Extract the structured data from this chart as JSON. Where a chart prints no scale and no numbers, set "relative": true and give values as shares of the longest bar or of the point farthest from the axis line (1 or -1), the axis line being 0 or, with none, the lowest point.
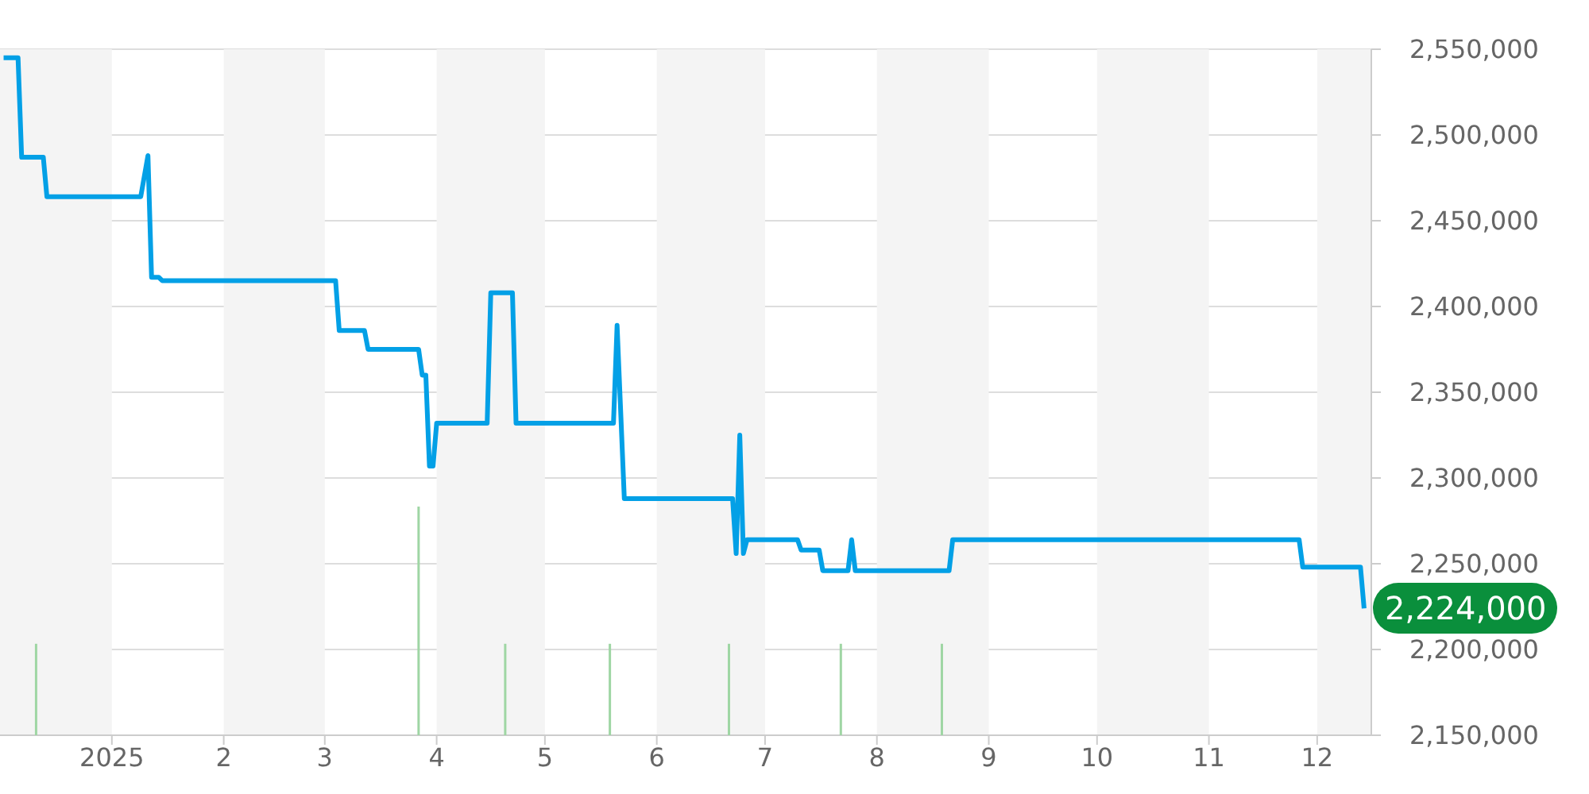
{
  "chart_data": [
    {
      "type": "line",
      "xlim": [
        "2024-12-01",
        "2025-12-16"
      ],
      "xticks": [
        {
          "value": "2025-01-01",
          "label": "2025"
        },
        {
          "value": "2025-02-01",
          "label": "2"
        },
        {
          "value": "2025-03-01",
          "label": "3"
        },
        {
          "value": "2025-04-01",
          "label": "4"
        },
        {
          "value": "2025-05-01",
          "label": "5"
        },
        {
          "value": "2025-06-01",
          "label": "6"
        },
        {
          "value": "2025-07-01",
          "label": "7"
        },
        {
          "value": "2025-08-01",
          "label": "8"
        },
        {
          "value": "2025-09-01",
          "label": "9"
        },
        {
          "value": "2025-10-01",
          "label": "10"
        },
        {
          "value": "2025-11-01",
          "label": "11"
        },
        {
          "value": "2025-12-01",
          "label": "12"
        }
      ],
      "ylim": [
        2150000,
        2550000
      ],
      "yticks": [
        {
          "value": 2150000,
          "label": "2,150,000"
        },
        {
          "value": 2200000,
          "label": "2,200,000"
        },
        {
          "value": 2250000,
          "label": "2,250,000"
        },
        {
          "value": 2300000,
          "label": "2,300,000"
        },
        {
          "value": 2350000,
          "label": "2,350,000"
        },
        {
          "value": 2400000,
          "label": "2,400,000"
        },
        {
          "value": 2450000,
          "label": "2,450,000"
        },
        {
          "value": 2500000,
          "label": "2,500,000"
        },
        {
          "value": 2550000,
          "label": "2,550,000"
        }
      ],
      "grid": "y",
      "marker": "none",
      "line_style": "solid",
      "series": [
        {
          "color": "#03a0e6",
          "x": [
            "2024-12-02",
            "2024-12-06",
            "2024-12-07",
            "2024-12-13",
            "2024-12-14",
            "2025-01-09",
            "2025-01-11",
            "2025-01-12",
            "2025-01-14",
            "2025-01-15",
            "2025-03-04",
            "2025-03-05",
            "2025-03-12",
            "2025-03-13",
            "2025-03-27",
            "2025-03-28",
            "2025-03-29",
            "2025-03-30",
            "2025-03-31",
            "2025-04-01",
            "2025-04-15",
            "2025-04-16",
            "2025-04-22",
            "2025-04-23",
            "2025-05-20",
            "2025-05-21",
            "2025-05-23",
            "2025-06-22",
            "2025-06-23",
            "2025-06-24",
            "2025-06-25",
            "2025-06-26",
            "2025-07-10",
            "2025-07-11",
            "2025-07-16",
            "2025-07-17",
            "2025-07-24",
            "2025-07-25",
            "2025-07-26",
            "2025-08-21",
            "2025-08-22",
            "2025-11-26",
            "2025-11-27",
            "2025-12-13",
            "2025-12-14"
          ],
          "values": [
            2545000,
            2545000,
            2487000,
            2487000,
            2464000,
            2464000,
            2488000,
            2417000,
            2417000,
            2415000,
            2415000,
            2386000,
            2386000,
            2375000,
            2375000,
            2360000,
            2360000,
            2307000,
            2307000,
            2332000,
            2332000,
            2408000,
            2408000,
            2332000,
            2332000,
            2389000,
            2288000,
            2288000,
            2256000,
            2325000,
            2256000,
            2264000,
            2264000,
            2258000,
            2258000,
            2246000,
            2246000,
            2264000,
            2246000,
            2246000,
            2264000,
            2264000,
            2248000,
            2248000,
            2224000
          ]
        }
      ],
      "bands": [
        {
          "axis": "x",
          "from": "2024-12-01",
          "to": "2025-01-01",
          "color": "#f4f4f4"
        },
        {
          "axis": "x",
          "from": "2025-02-01",
          "to": "2025-03-01",
          "color": "#f4f4f4"
        },
        {
          "axis": "x",
          "from": "2025-04-01",
          "to": "2025-05-01",
          "color": "#f4f4f4"
        },
        {
          "axis": "x",
          "from": "2025-06-01",
          "to": "2025-07-01",
          "color": "#f4f4f4"
        },
        {
          "axis": "x",
          "from": "2025-08-01",
          "to": "2025-09-01",
          "color": "#f4f4f4"
        },
        {
          "axis": "x",
          "from": "2025-10-01",
          "to": "2025-11-01",
          "color": "#f4f4f4"
        },
        {
          "axis": "x",
          "from": "2025-12-01",
          "to": "2025-12-16",
          "color": "#f4f4f4"
        }
      ],
      "annotations": [
        {
          "text": "2,224,000",
          "x": "2025-12-14",
          "y": 2224000
        }
      ]
    },
    {
      "type": "bar",
      "relative": true,
      "tick_labels": false,
      "xlim": [
        "2024-12-01",
        "2025-12-16"
      ],
      "xticks": [
        {
          "value": "2025-01-01",
          "label": null
        },
        {
          "value": "2025-02-01",
          "label": null
        },
        {
          "value": "2025-03-01",
          "label": null
        },
        {
          "value": "2025-04-01",
          "label": null
        },
        {
          "value": "2025-05-01",
          "label": null
        },
        {
          "value": "2025-06-01",
          "label": null
        },
        {
          "value": "2025-07-01",
          "label": null
        },
        {
          "value": "2025-08-01",
          "label": null
        },
        {
          "value": "2025-09-01",
          "label": null
        },
        {
          "value": "2025-10-01",
          "label": null
        },
        {
          "value": "2025-11-01",
          "label": null
        },
        {
          "value": "2025-12-01",
          "label": null
        }
      ],
      "series": [
        {
          "color": "#9fd6a4",
          "x": [
            "2024-12-11",
            "2025-03-27",
            "2025-04-20",
            "2025-05-19",
            "2025-06-21",
            "2025-07-22",
            "2025-08-19"
          ],
          "values": [
            0.4,
            1,
            0.4,
            0.4,
            0.4,
            0.4,
            0.4
          ]
        }
      ]
    }
  ]
}
